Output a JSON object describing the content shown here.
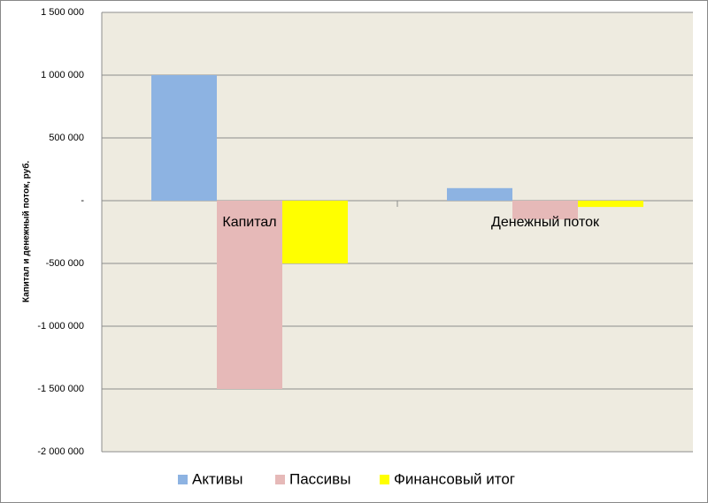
{
  "chart_data": {
    "type": "bar",
    "y_label": "Капитал и денежный поток, руб.",
    "categories": [
      "Капитал",
      "Денежный поток"
    ],
    "series": [
      {
        "name": "Активы",
        "color": "#8db3e2",
        "values": [
          1000000,
          100000
        ]
      },
      {
        "name": "Пассивы",
        "color": "#e6b9b8",
        "values": [
          -1500000,
          -150000
        ]
      },
      {
        "name": "Финансовый итог",
        "color": "#ffff00",
        "values": [
          -500000,
          -50000
        ]
      }
    ],
    "ylim": [
      -2000000,
      1500000
    ],
    "yticks": [
      {
        "value": -2000000,
        "label": "-2 000 000"
      },
      {
        "value": -1500000,
        "label": "-1 500 000"
      },
      {
        "value": -1000000,
        "label": "-1 000 000"
      },
      {
        "value": -500000,
        "label": "-500 000"
      },
      {
        "value": 0,
        "label": "-"
      },
      {
        "value": 500000,
        "label": "500 000"
      },
      {
        "value": 1000000,
        "label": "1 000 000"
      },
      {
        "value": 1500000,
        "label": "1 500 000"
      }
    ],
    "grid": true,
    "legend": "bottom"
  }
}
